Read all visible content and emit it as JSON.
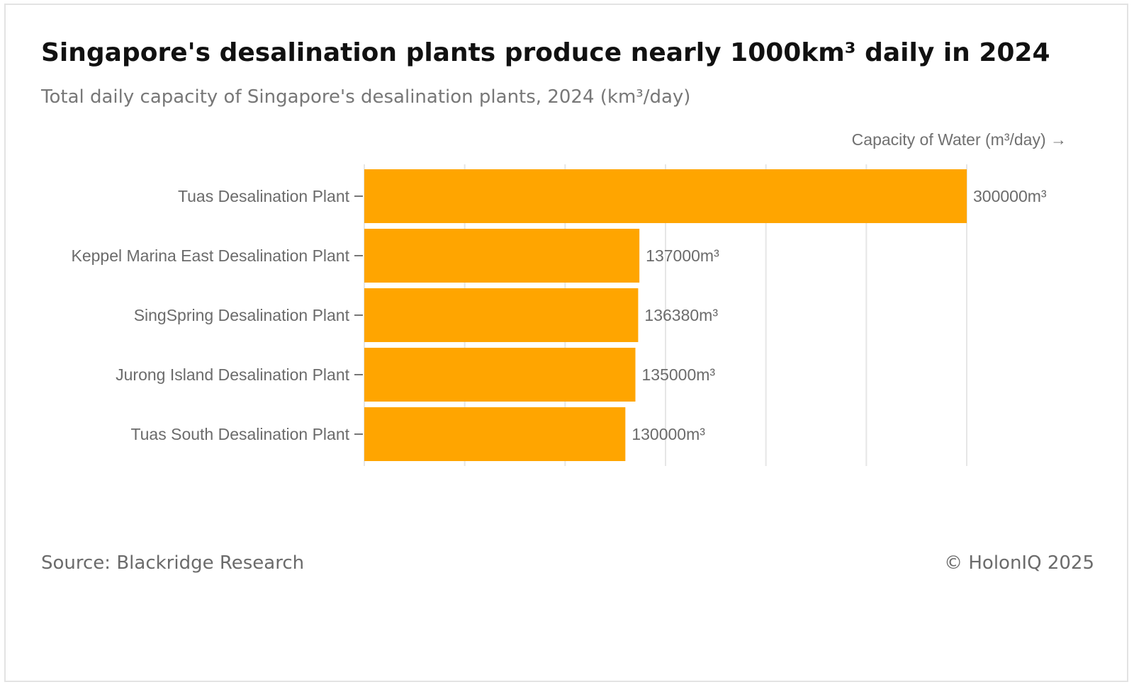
{
  "header": {
    "title": "Singapore's desalination plants produce nearly 1000km³ daily in 2024",
    "subtitle": "Total daily capacity of Singapore's desalination plants, 2024 (km³/day)"
  },
  "footer": {
    "source": "Source: Blackridge Research",
    "copyright": "© HolonIQ 2025"
  },
  "colors": {
    "bar": "#FFA500",
    "grid": "#e6e6e6",
    "text": "#6b6b6b"
  },
  "chart_data": {
    "type": "bar",
    "orientation": "horizontal",
    "title": "Singapore's desalination plants produce nearly 1000km³ daily in 2024",
    "subtitle": "Total daily capacity of Singapore's desalination plants, 2024 (km³/day)",
    "xlabel": "Capacity of Water (m³/day) →",
    "ylabel": "",
    "categories": [
      "Tuas Desalination Plant",
      "Keppel Marina East Desalination Plant",
      "SingSpring Desalination Plant",
      "Jurong Island Desalination Plant",
      "Tuas South Desalination Plant"
    ],
    "values": [
      300000,
      137000,
      136380,
      135000,
      130000
    ],
    "value_labels": [
      "300000m³",
      "137000m³",
      "136380m³",
      "135000m³",
      "130000m³"
    ],
    "xlim": [
      0,
      300000
    ],
    "grid": true,
    "legend": "none"
  }
}
